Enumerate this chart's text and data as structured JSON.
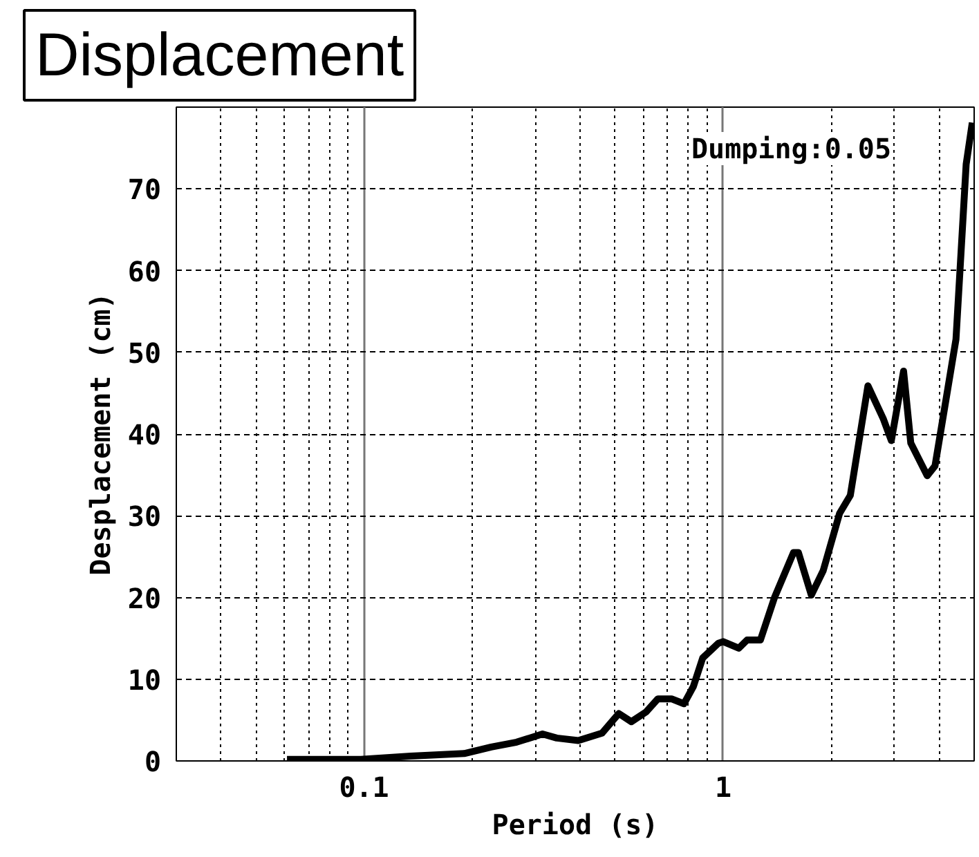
{
  "chart_data": {
    "type": "line",
    "title": "Displacement",
    "xlabel": "Period (s)",
    "ylabel": "Desplacement (cm)",
    "annotations": [
      "Dumping:0.05"
    ],
    "log": "x",
    "grid": true,
    "marker": "none",
    "line_style": "solid",
    "xlim": [
      0.03,
      5
    ],
    "xticks": [
      0.1,
      1
    ],
    "ylim": [
      0,
      80
    ],
    "yticks": [
      0,
      10,
      20,
      30,
      40,
      50,
      60,
      70
    ],
    "x": [
      0.061,
      0.098,
      0.135,
      0.19,
      0.226,
      0.266,
      0.314,
      0.344,
      0.395,
      0.46,
      0.512,
      0.555,
      0.61,
      0.658,
      0.718,
      0.778,
      0.826,
      0.877,
      0.97,
      1.0,
      1.106,
      1.166,
      1.27,
      1.39,
      1.57,
      1.62,
      1.76,
      1.9,
      2.11,
      2.26,
      2.53,
      2.65,
      2.79,
      2.94,
      3.18,
      3.33,
      3.7,
      3.89,
      4.45,
      4.75,
      4.94
    ],
    "series": [
      {
        "color": "#000000",
        "values": [
          0.2,
          0.2,
          0.6,
          0.9,
          1.7,
          2.3,
          3.3,
          2.8,
          2.5,
          3.4,
          5.8,
          4.8,
          6.0,
          7.6,
          7.6,
          7.0,
          9.1,
          12.6,
          14.4,
          14.6,
          13.8,
          14.8,
          14.8,
          20.0,
          25.5,
          25.5,
          20.3,
          23.3,
          30.3,
          32.5,
          45.9,
          44.0,
          41.9,
          39.2,
          47.7,
          38.9,
          34.9,
          36.1,
          51.6,
          73.0,
          78.1
        ]
      }
    ]
  }
}
